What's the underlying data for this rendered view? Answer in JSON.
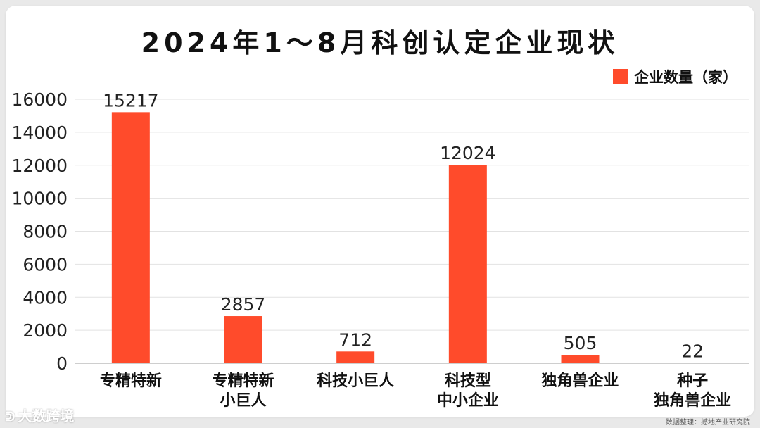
{
  "chart_data": {
    "type": "bar",
    "title": "2024年1～8月科创认定企业现状",
    "categories": [
      [
        "专精特新"
      ],
      [
        "专精特新",
        "小巨人"
      ],
      [
        "科技小巨人"
      ],
      [
        "科技型",
        "中小企业"
      ],
      [
        "独角兽企业"
      ],
      [
        "种子",
        "独角兽企业"
      ]
    ],
    "series": [
      {
        "name": "企业数量（家）",
        "values": [
          15217,
          2857,
          712,
          12024,
          505,
          22
        ]
      }
    ],
    "ylim": [
      0,
      16000
    ],
    "yticks": [
      0,
      2000,
      4000,
      6000,
      8000,
      10000,
      12000,
      14000,
      16000
    ],
    "grid": true,
    "legend_position": "top-right",
    "bar_color": "#ff4b2b"
  },
  "footer": {
    "source": "数据整理：撼地产业研究院",
    "brand": "大数跨境",
    "brand_icon": "brand-logo-icon"
  }
}
